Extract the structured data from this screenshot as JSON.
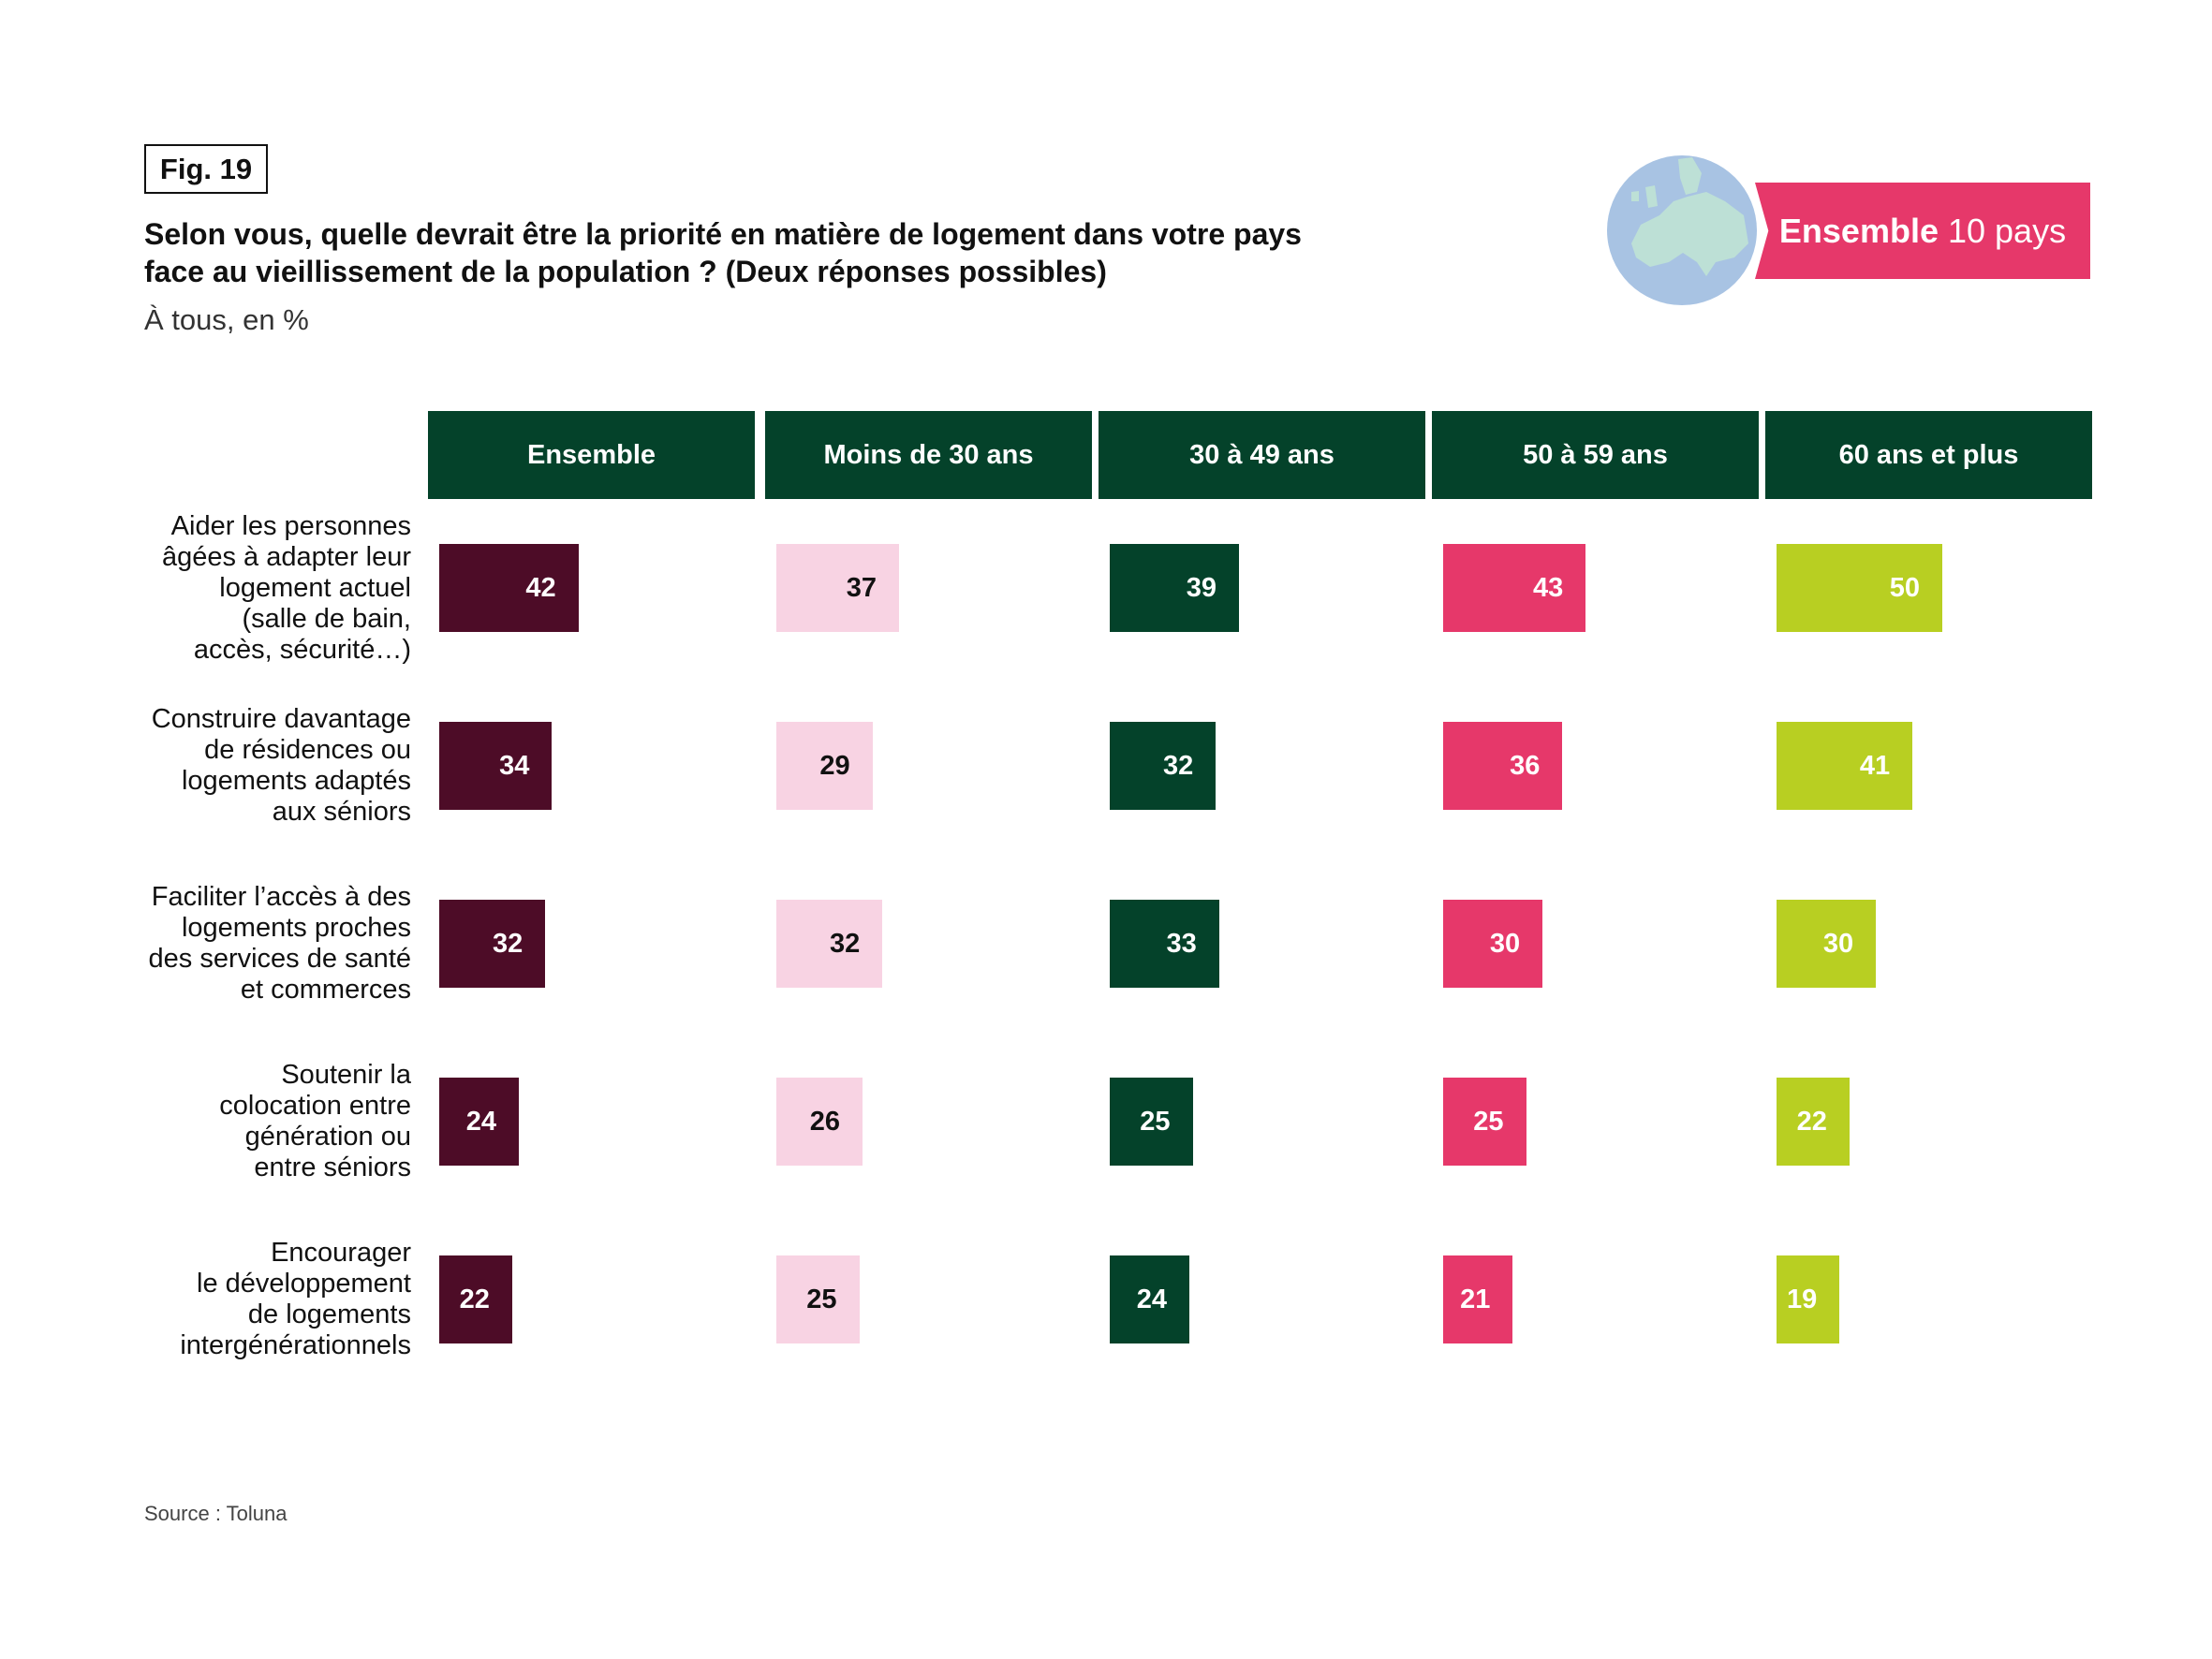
{
  "figure_label": "Fig. 19",
  "title_lines": [
    "Selon vous, quelle devrait être la priorité en matière de logement dans votre pays",
    "face au vieillissement de la population ? (Deux réponses possibles)"
  ],
  "subtitle": "À tous, en %",
  "banner": {
    "bold": "Ensemble",
    "rest": "10 pays"
  },
  "source": "Source : Toluna",
  "chart_data": {
    "type": "table",
    "title": "Selon vous, quelle devrait être la priorité en matière de logement dans votre pays face au vieillissement de la population ? (Deux réponses possibles)",
    "unit": "%",
    "columns": [
      "Ensemble",
      "Moins de 30 ans",
      "30 à 49 ans",
      "50 à 59 ans",
      "60 ans et plus"
    ],
    "column_colors": [
      "#4d0c27",
      "#f8d3e3",
      "#04422a",
      "#e6386a",
      "#b8cf22"
    ],
    "column_text_colors": [
      "#ffffff",
      "#111111",
      "#ffffff",
      "#ffffff",
      "#ffffff"
    ],
    "rows": [
      {
        "label": "Aider les personnes âgées à adapter leur logement actuel (salle de bain, accès, sécurité…)",
        "label_lines": [
          "Aider les personnes",
          "âgées à adapter leur",
          "logement actuel",
          "(salle de bain,",
          "accès, sécurité…)"
        ],
        "values": [
          42,
          37,
          39,
          43,
          50
        ]
      },
      {
        "label": "Construire davantage de résidences ou logements adaptés aux séniors",
        "label_lines": [
          "Construire davantage",
          "de résidences ou",
          "logements adaptés",
          "aux séniors"
        ],
        "values": [
          34,
          29,
          32,
          36,
          41
        ]
      },
      {
        "label": "Faciliter l’accès à des logements proches des services de santé et commerces",
        "label_lines": [
          "Faciliter l’accès à des",
          "logements proches",
          "des services de santé",
          "et commerces"
        ],
        "values": [
          32,
          32,
          33,
          30,
          30
        ]
      },
      {
        "label": "Soutenir la colocation entre génération ou entre séniors",
        "label_lines": [
          "Soutenir la",
          "colocation entre",
          "génération ou",
          "entre séniors"
        ],
        "values": [
          24,
          26,
          25,
          25,
          22
        ]
      },
      {
        "label": "Encourager le développement de logements intergénérationnels",
        "label_lines": [
          "Encourager",
          "le développement",
          "de logements",
          "intergénérationnels"
        ],
        "values": [
          22,
          25,
          24,
          21,
          19
        ]
      }
    ]
  }
}
